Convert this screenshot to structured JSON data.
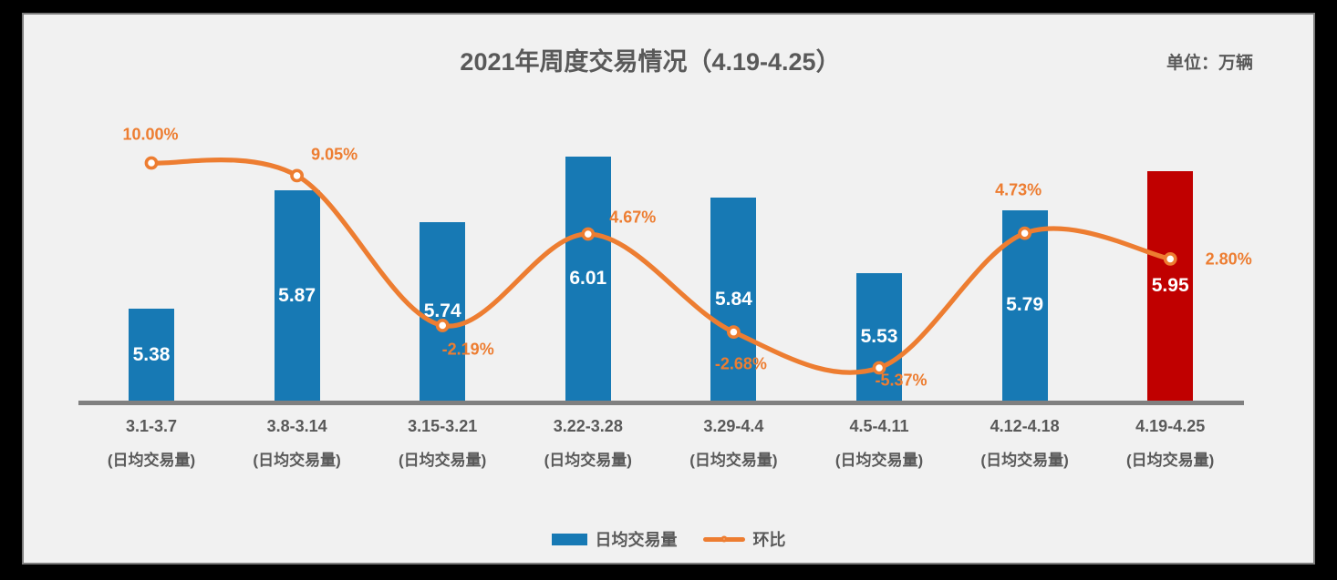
{
  "header": {
    "title": "2021年周度交易情况（4.19-4.25）",
    "unit_label": "单位：万辆"
  },
  "legend": {
    "bar_label": "日均交易量",
    "line_label": "环比"
  },
  "colors": {
    "bar_blue": "#1779B4",
    "bar_highlight_red": "#C00000",
    "line_orange": "#ED7D31",
    "text_gray": "#595959",
    "axis_gray": "#808080",
    "background": "#F1F1F1"
  },
  "chart_data": {
    "type": "bar+line combo",
    "title": "2021年周度交易情况（4.19-4.25）",
    "unit": "万辆",
    "categories": [
      "3.1-3.7",
      "3.8-3.14",
      "3.15-3.21",
      "3.22-3.28",
      "3.29-4.4",
      "4.5-4.11",
      "4.12-4.18",
      "4.19-4.25"
    ],
    "category_sublabel": "(日均交易量)",
    "series": [
      {
        "name": "日均交易量",
        "type": "bar",
        "values": [
          5.38,
          5.87,
          5.74,
          6.01,
          5.84,
          5.53,
          5.79,
          5.95
        ],
        "labels": [
          "5.38",
          "5.87",
          "5.74",
          "6.01",
          "5.84",
          "5.53",
          "5.79",
          "5.95"
        ],
        "highlight_index": 7
      },
      {
        "name": "环比",
        "type": "line",
        "values": [
          10.0,
          9.05,
          -2.19,
          4.67,
          -2.68,
          -5.37,
          4.73,
          2.8
        ],
        "labels": [
          "10.00%",
          "9.05%",
          "-2.19%",
          "4.67%",
          "-2.68%",
          "-5.37%",
          "4.73%",
          "2.80%"
        ]
      }
    ],
    "bar_axis_baseline": 5.0,
    "grid": false,
    "legend_position": "bottom",
    "x_axis_line": true
  }
}
